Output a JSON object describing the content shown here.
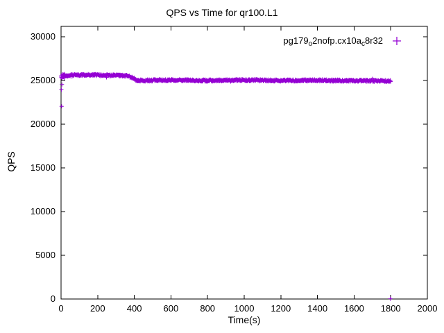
{
  "chart_data": {
    "type": "scatter",
    "title": "QPS vs Time for qr100.L1",
    "xlabel": "Time(s)",
    "ylabel": "QPS",
    "xlim": [
      0,
      2000
    ],
    "ylim": [
      0,
      31200
    ],
    "xticks": [
      0,
      200,
      400,
      600,
      800,
      1000,
      1200,
      1400,
      1600,
      1800,
      2000
    ],
    "yticks": [
      0,
      5000,
      10000,
      15000,
      20000,
      25000,
      30000
    ],
    "grid": false,
    "legend_position": "top-right-inside",
    "background_color": "#ffffff",
    "border_color": "#000000",
    "series": [
      {
        "name": "pg179_o2nofp.cx10a_c8r32",
        "name_parts": [
          {
            "text": "pg179"
          },
          {
            "text": "o",
            "sub": true
          },
          {
            "text": "2nofp.cx10a"
          },
          {
            "text": "c",
            "sub": true
          },
          {
            "text": "8r32"
          }
        ],
        "color": "#9400d3",
        "marker": "plus",
        "x_start": 0,
        "x_end": 1800,
        "x_step": 2,
        "noise": 110,
        "start_cluster_x_max": 20,
        "start_cluster_noise_mult": 2.4,
        "trend": [
          [
            0,
            25350
          ],
          [
            10,
            25550
          ],
          [
            60,
            25600
          ],
          [
            150,
            25650
          ],
          [
            250,
            25600
          ],
          [
            360,
            25550
          ],
          [
            390,
            25350
          ],
          [
            410,
            25050
          ],
          [
            430,
            25000
          ],
          [
            600,
            25050
          ],
          [
            800,
            25000
          ],
          [
            1000,
            25050
          ],
          [
            1200,
            25000
          ],
          [
            1400,
            25020
          ],
          [
            1600,
            24980
          ],
          [
            1800,
            24950
          ]
        ],
        "outliers": [
          [
            2,
            23950
          ],
          [
            3,
            22050
          ],
          [
            5,
            24550
          ],
          [
            1798,
            30
          ]
        ]
      }
    ]
  }
}
